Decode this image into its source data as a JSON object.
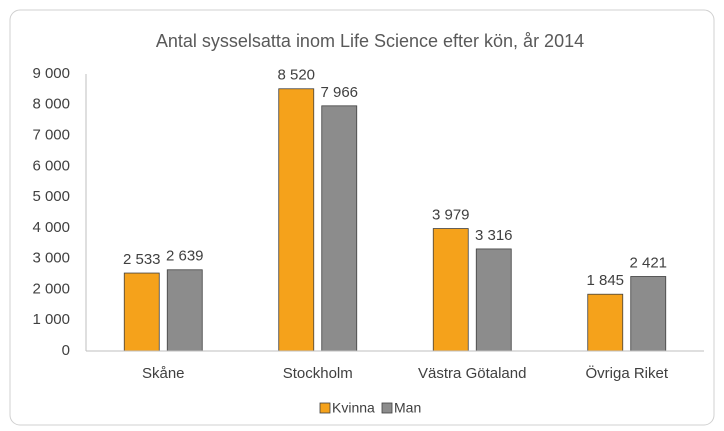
{
  "chart_data": {
    "type": "bar",
    "title": "Antal sysselsatta inom Life Science efter kön, år 2014",
    "categories": [
      "Skåne",
      "Stockholm",
      "Västra Götaland",
      "Övriga Riket"
    ],
    "series": [
      {
        "name": "Kvinna",
        "color": "#f5a21b",
        "values": [
          2533,
          8520,
          3979,
          1845
        ],
        "value_labels": [
          "2 533",
          "8 520",
          "3 979",
          "1 845"
        ]
      },
      {
        "name": "Man",
        "color": "#8c8c8c",
        "values": [
          2639,
          7966,
          3316,
          2421
        ],
        "value_labels": [
          "2 639",
          "7 966",
          "3 316",
          "2 421"
        ]
      }
    ],
    "ylim": [
      0,
      9000
    ],
    "yticks": [
      0,
      {
        "value": 1000,
        "label": "1 000"
      },
      {
        "value": 2000,
        "label": "2 000"
      },
      {
        "value": 3000,
        "label": "3 000"
      },
      {
        "value": 4000,
        "label": "4 000"
      },
      {
        "value": 5000,
        "label": "5 000"
      },
      {
        "value": 6000,
        "label": "6 000"
      },
      {
        "value": 7000,
        "label": "7 000"
      },
      {
        "value": 8000,
        "label": "8 000"
      },
      {
        "value": 9000,
        "label": "9 000"
      }
    ],
    "grid": false,
    "legend": "bottom"
  }
}
